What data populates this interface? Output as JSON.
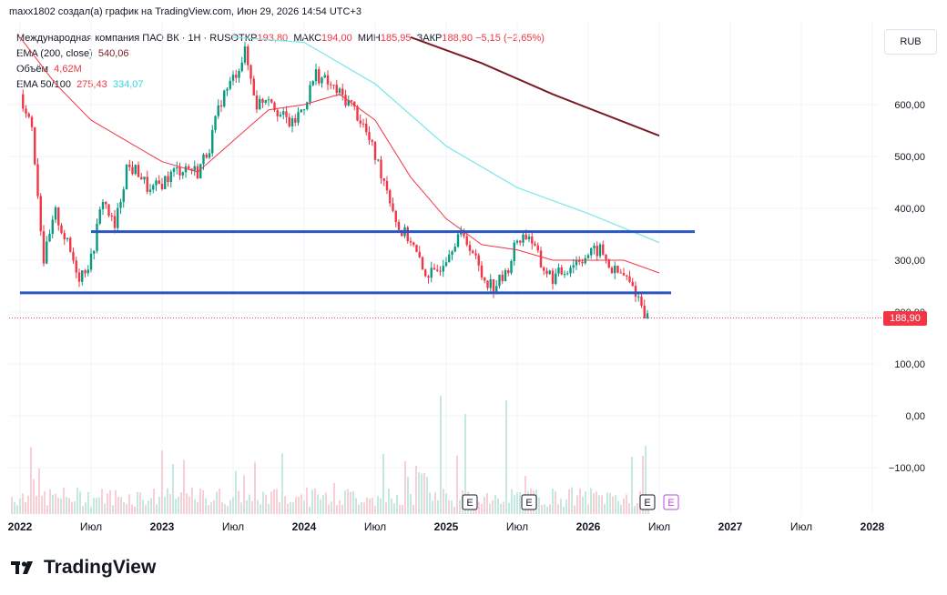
{
  "attribution": "maxx1802 создал(а) график на TradingView.com, Июн 29, 2026 14:54 UTC+3",
  "legend": {
    "symbol": "Международная компания ПАО ВК · 1Н · RUS",
    "open_label": "ОТКР",
    "open": "193,80",
    "high_label": "МАКС",
    "high": "194,00",
    "low_label": "МИН",
    "low": "185,95",
    "close_label": "ЗАКР",
    "close": "188,90",
    "change": "−5,15 (−2,65%)",
    "ema200_label": "EMA (200, close)",
    "ema200_value": "540,06",
    "volume_label": "Объём",
    "volume_value": "4,62M",
    "ema_label": "EMA 50/100",
    "ema50_value": "275,43",
    "ema100_value": "334,07"
  },
  "currency": "RUB",
  "last_price": "188,90",
  "logo_text": "TradingView",
  "colors": {
    "up": "#089981",
    "down": "#f23645",
    "ema50": "#f23645",
    "ema100": "#7fe8ea",
    "ema200": "#7b1c24",
    "hline": "#2962ff",
    "event": "#b84ad8"
  },
  "chart_data": {
    "type": "candlestick",
    "y_ticks": [
      "600,00",
      "500,00",
      "400,00",
      "300,00",
      "200,00",
      "100,00",
      "0,00",
      "−100,00"
    ],
    "x_ticks": [
      "2022",
      "Июл",
      "2023",
      "Июл",
      "2024",
      "Июл",
      "2025",
      "Июл",
      "2026",
      "Июл",
      "2027",
      "Июл",
      "2028"
    ],
    "ylim": [
      -150,
      730
    ],
    "horizontal_lines": [
      {
        "value": 355,
        "from": "2022-07",
        "to": "2026-10"
      },
      {
        "value": 237,
        "from": "2022-01",
        "to": "2026-08"
      }
    ],
    "last_close": 188.9,
    "close_path": [
      [
        "2022-01",
        620
      ],
      [
        "2022-02",
        560
      ],
      [
        "2022-03",
        300
      ],
      [
        "2022-04",
        390
      ],
      [
        "2022-05",
        330
      ],
      [
        "2022-06",
        270
      ],
      [
        "2022-07",
        300
      ],
      [
        "2022-08",
        420
      ],
      [
        "2022-09",
        360
      ],
      [
        "2022-10",
        480
      ],
      [
        "2022-11",
        470
      ],
      [
        "2022-12",
        430
      ],
      [
        "2023-01",
        450
      ],
      [
        "2023-02",
        470
      ],
      [
        "2023-03",
        480
      ],
      [
        "2023-04",
        470
      ],
      [
        "2023-05",
        520
      ],
      [
        "2023-06",
        610
      ],
      [
        "2023-07",
        650
      ],
      [
        "2023-08",
        700
      ],
      [
        "2023-09",
        600
      ],
      [
        "2023-10",
        620
      ],
      [
        "2023-11",
        580
      ],
      [
        "2023-12",
        560
      ],
      [
        "2024-01",
        600
      ],
      [
        "2024-02",
        660
      ],
      [
        "2024-03",
        640
      ],
      [
        "2024-04",
        620
      ],
      [
        "2024-05",
        600
      ],
      [
        "2024-06",
        560
      ],
      [
        "2024-07",
        500
      ],
      [
        "2024-08",
        440
      ],
      [
        "2024-09",
        360
      ],
      [
        "2024-10",
        340
      ],
      [
        "2024-11",
        280
      ],
      [
        "2024-12",
        270
      ],
      [
        "2025-01",
        310
      ],
      [
        "2025-02",
        350
      ],
      [
        "2025-03",
        330
      ],
      [
        "2025-04",
        270
      ],
      [
        "2025-05",
        250
      ],
      [
        "2025-06",
        270
      ],
      [
        "2025-07",
        340
      ],
      [
        "2025-08",
        350
      ],
      [
        "2025-09",
        290
      ],
      [
        "2025-10",
        265
      ],
      [
        "2025-11",
        280
      ],
      [
        "2025-12",
        300
      ],
      [
        "2026-01",
        310
      ],
      [
        "2026-02",
        320
      ],
      [
        "2026-03",
        280
      ],
      [
        "2026-04",
        270
      ],
      [
        "2026-05",
        240
      ],
      [
        "2026-06",
        188.9
      ]
    ],
    "ema50_path": [
      [
        "2022-01",
        730
      ],
      [
        "2022-04",
        640
      ],
      [
        "2022-07",
        570
      ],
      [
        "2022-10",
        530
      ],
      [
        "2023-01",
        490
      ],
      [
        "2023-04",
        470
      ],
      [
        "2023-07",
        530
      ],
      [
        "2023-10",
        590
      ],
      [
        "2024-01",
        600
      ],
      [
        "2024-04",
        620
      ],
      [
        "2024-07",
        570
      ],
      [
        "2024-10",
        460
      ],
      [
        "2025-01",
        380
      ],
      [
        "2025-04",
        330
      ],
      [
        "2025-07",
        320
      ],
      [
        "2025-10",
        300
      ],
      [
        "2026-01",
        300
      ],
      [
        "2026-04",
        300
      ],
      [
        "2026-07",
        275.43
      ]
    ],
    "ema100_path": [
      [
        "2023-07",
        730
      ],
      [
        "2024-01",
        720
      ],
      [
        "2024-07",
        640
      ],
      [
        "2025-01",
        520
      ],
      [
        "2025-07",
        440
      ],
      [
        "2026-01",
        390
      ],
      [
        "2026-07",
        334.07
      ]
    ],
    "ema200_path": [
      [
        "2024-10",
        730
      ],
      [
        "2025-04",
        680
      ],
      [
        "2025-10",
        620
      ],
      [
        "2026-07",
        540.06
      ]
    ],
    "events": [
      "2025-03",
      "2025-08",
      "2026-06",
      "2026-08"
    ]
  }
}
